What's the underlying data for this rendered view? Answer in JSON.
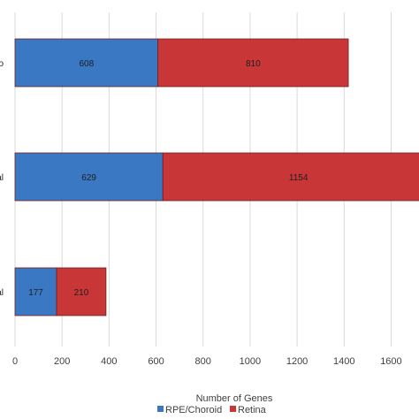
{
  "chart_data": {
    "type": "bar",
    "orientation": "horizontal",
    "stacked": true,
    "categories": [
      "o",
      "al",
      "al"
    ],
    "series": [
      {
        "name": "RPE/Choroid",
        "values": [
          608,
          629,
          177
        ],
        "color": "#3a78c4"
      },
      {
        "name": "Retina",
        "values": [
          810,
          1154,
          210
        ],
        "color": "#c93638"
      }
    ],
    "xlabel": "Number of Genes",
    "ylabel": "",
    "xlim": [
      0,
      1700
    ],
    "xticks": [
      0,
      200,
      400,
      600,
      800,
      1000,
      1200,
      1400,
      1600
    ],
    "grid": "vertical",
    "legend": "bottom"
  }
}
